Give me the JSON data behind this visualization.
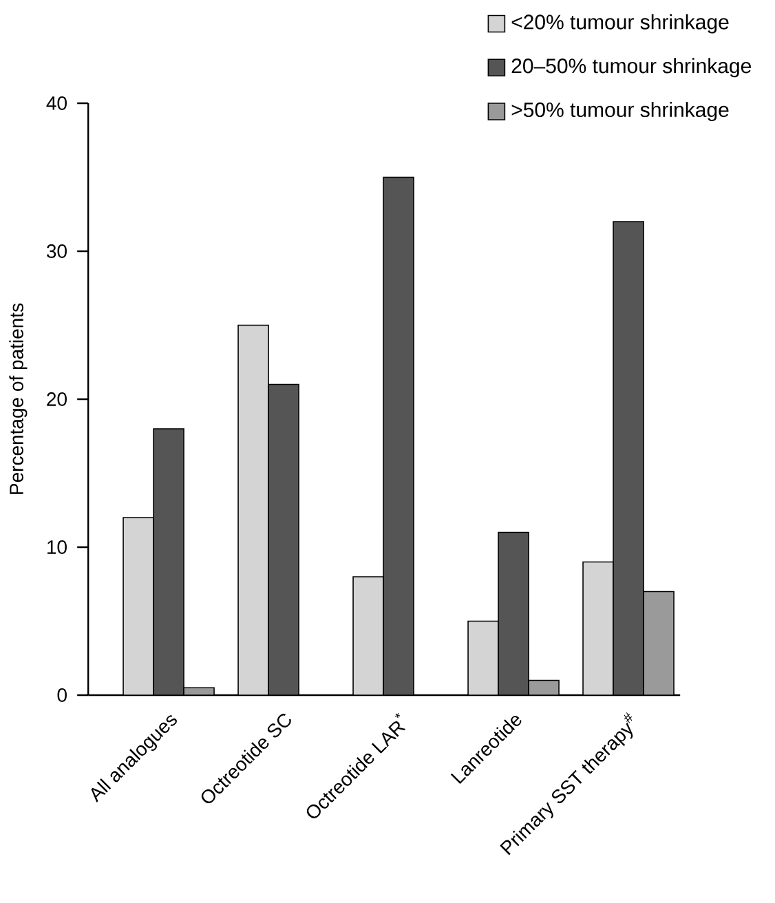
{
  "chart_data": {
    "type": "bar",
    "ylabel": "Percentage of patients",
    "categories": [
      "All analogues",
      "Octreotide SC",
      "Octreotide LAR$^{*}$",
      "Lanreotide",
      "Primary SST therapy$^{#}$"
    ],
    "series": [
      {
        "name": "<20% tumour shrinkage",
        "color": "#d4d4d4",
        "values": [
          12,
          25,
          8,
          5,
          9
        ]
      },
      {
        "name": "20–50% tumour shrinkage",
        "color": "#555555",
        "values": [
          18,
          21,
          35,
          11,
          32
        ]
      },
      {
        "name": ">50% tumour shrinkage",
        "color": "#9a9a9a",
        "values": [
          0.5,
          null,
          null,
          1,
          7
        ]
      }
    ],
    "ylim": [
      0,
      40
    ],
    "yticks": [
      0,
      10,
      20,
      30,
      40
    ],
    "grid": false,
    "legend": "top right"
  }
}
